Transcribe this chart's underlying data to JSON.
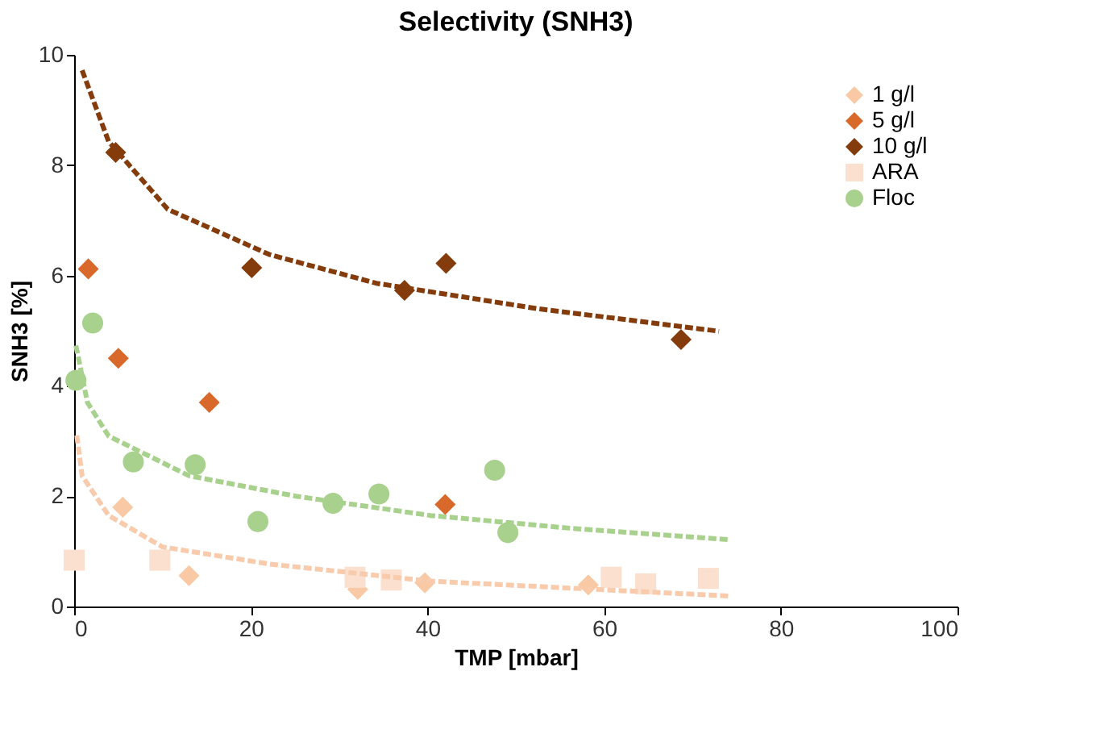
{
  "chart_data": {
    "type": "scatter",
    "title": "Selectivity (SNH3)",
    "xlabel": "TMP [mbar]",
    "ylabel": "SNH3 [%]",
    "xlim": [
      0,
      100
    ],
    "xticks": [
      0,
      20,
      40,
      60,
      80,
      100
    ],
    "ylim": [
      0,
      10
    ],
    "yticks": [
      0,
      2,
      4,
      6,
      8,
      10
    ],
    "grid": false,
    "legend": "top right",
    "series": [
      {
        "name": "1 g/l",
        "marker": "diamond",
        "color": "#f8c9a4",
        "x": [
          5.5,
          13.0,
          32.1,
          39.7,
          58.2
        ],
        "values": [
          1.8,
          0.56,
          0.31,
          0.43,
          0.39
        ]
      },
      {
        "name": "5 g/l",
        "marker": "diamond",
        "color": "#d8692a",
        "x": [
          1.6,
          5.0,
          15.3,
          42.0
        ],
        "values": [
          6.12,
          4.5,
          3.7,
          1.85
        ]
      },
      {
        "name": "10 g/l",
        "marker": "diamond",
        "color": "#843c0c",
        "x": [
          4.7,
          20.1,
          37.4,
          42.1,
          68.7
        ],
        "values": [
          8.23,
          6.14,
          5.73,
          6.22,
          4.84
        ]
      },
      {
        "name": "ARA",
        "marker": "square",
        "color": "#fbe0d0",
        "x": [
          0,
          9.7,
          31.8,
          35.9,
          60.8,
          64.7,
          71.8
        ],
        "values": [
          0.84,
          0.84,
          0.53,
          0.48,
          0.53,
          0.41,
          0.51
        ]
      },
      {
        "name": "Floc",
        "marker": "circle",
        "color": "#a9d18e",
        "x": [
          0.2,
          2.1,
          6.7,
          13.7,
          20.8,
          29.3,
          34.5,
          47.6,
          49.1
        ],
        "values": [
          4.1,
          5.14,
          2.62,
          2.57,
          1.54,
          1.87,
          2.04,
          2.47,
          1.34
        ]
      },
      {
        "type": "line",
        "line_style": "dashed",
        "marker": "none",
        "color": "#843c0c",
        "x": [
          0.9,
          3.9,
          10.6,
          22.1,
          34.2,
          52.4,
          73
        ],
        "values": [
          9.72,
          8.43,
          7.2,
          6.38,
          5.86,
          5.4,
          4.99
        ]
      },
      {
        "type": "line",
        "line_style": "dashed",
        "marker": "none",
        "color": "#a9d18e",
        "x": [
          0.2,
          1.5,
          3.9,
          13,
          25.1,
          40.3,
          56.1,
          74.2
        ],
        "values": [
          4.73,
          3.7,
          3.09,
          2.37,
          2.0,
          1.65,
          1.42,
          1.21
        ]
      },
      {
        "type": "line",
        "line_style": "dashed",
        "marker": "none",
        "color": "#f8cbad",
        "x": [
          0.3,
          0.9,
          3.9,
          10,
          22.1,
          40.3,
          74.2
        ],
        "values": [
          3.1,
          2.37,
          1.65,
          1.08,
          0.77,
          0.46,
          0.19
        ]
      }
    ]
  }
}
